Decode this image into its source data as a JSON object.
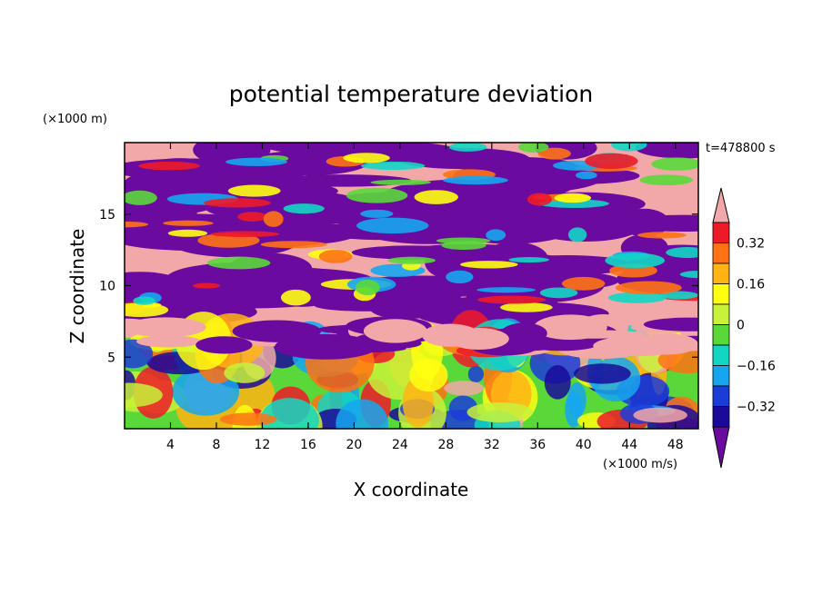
{
  "chart_data": {
    "type": "heatmap",
    "title": "potential temperature deviation",
    "xlabel": "X coordinate",
    "ylabel": "Z coordinate",
    "x_unit": "(×1000 m/s)",
    "y_unit": "(×1000 m)",
    "time_label": "t=478800 s",
    "xlim": [
      0,
      50
    ],
    "ylim": [
      0,
      20
    ],
    "x_ticks": [
      4,
      8,
      12,
      16,
      20,
      24,
      28,
      32,
      36,
      40,
      44,
      48
    ],
    "y_ticks": [
      5,
      10,
      15
    ],
    "colorbar": {
      "levels": [
        -0.4,
        -0.32,
        -0.24,
        -0.16,
        -0.08,
        0,
        0.08,
        0.16,
        0.24,
        0.32,
        0.4
      ],
      "labels": [
        "0.32",
        "0.16",
        "0",
        "−0.16",
        "−0.32"
      ],
      "label_values": [
        0.32,
        0.16,
        0,
        -0.16,
        -0.32
      ],
      "colors": [
        "#6a0a9e",
        "#1a0a9a",
        "#1c3cd8",
        "#16a6f0",
        "#12d6c4",
        "#5ad83a",
        "#c8f23a",
        "#ffff10",
        "#ffb414",
        "#ff7214",
        "#ee1a28",
        "#f2a8a8"
      ],
      "extend": "both"
    }
  }
}
